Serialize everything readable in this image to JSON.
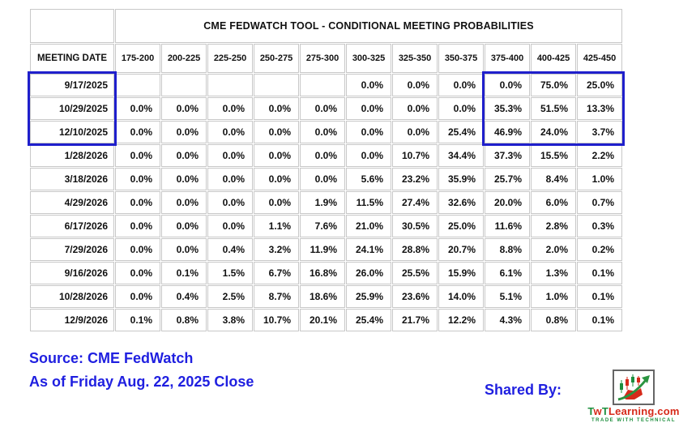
{
  "header": {
    "title": "CME FEDWATCH TOOL - CONDITIONAL MEETING PROBABILITIES",
    "date_column_label": "MEETING DATE",
    "rate_bins": [
      "175-200",
      "200-225",
      "225-250",
      "250-275",
      "275-300",
      "300-325",
      "325-350",
      "350-375",
      "375-400",
      "400-425",
      "425-450"
    ]
  },
  "chart_data": {
    "type": "table",
    "title": "CME FEDWATCH TOOL - CONDITIONAL MEETING PROBABILITIES",
    "columns": [
      "MEETING DATE",
      "175-200",
      "200-225",
      "225-250",
      "250-275",
      "275-300",
      "300-325",
      "325-350",
      "350-375",
      "375-400",
      "400-425",
      "425-450"
    ],
    "rows": [
      {
        "date": "9/17/2025",
        "values": [
          "",
          "",
          "",
          "",
          "",
          "0.0%",
          "0.0%",
          "0.0%",
          "0.0%",
          "75.0%",
          "25.0%"
        ],
        "cyan_index": 9
      },
      {
        "date": "10/29/2025",
        "values": [
          "0.0%",
          "0.0%",
          "0.0%",
          "0.0%",
          "0.0%",
          "0.0%",
          "0.0%",
          "0.0%",
          "35.3%",
          "51.5%",
          "13.3%"
        ],
        "cyan_index": 9
      },
      {
        "date": "12/10/2025",
        "values": [
          "0.0%",
          "0.0%",
          "0.0%",
          "0.0%",
          "0.0%",
          "0.0%",
          "0.0%",
          "25.4%",
          "46.9%",
          "24.0%",
          "3.7%"
        ],
        "cyan_index": 8
      },
      {
        "date": "1/28/2026",
        "values": [
          "0.0%",
          "0.0%",
          "0.0%",
          "0.0%",
          "0.0%",
          "0.0%",
          "10.7%",
          "34.4%",
          "37.3%",
          "15.5%",
          "2.2%"
        ],
        "cyan_index": 8
      },
      {
        "date": "3/18/2026",
        "values": [
          "0.0%",
          "0.0%",
          "0.0%",
          "0.0%",
          "0.0%",
          "5.6%",
          "23.2%",
          "35.9%",
          "25.7%",
          "8.4%",
          "1.0%"
        ],
        "cyan_index": 7
      },
      {
        "date": "4/29/2026",
        "values": [
          "0.0%",
          "0.0%",
          "0.0%",
          "0.0%",
          "1.9%",
          "11.5%",
          "27.4%",
          "32.6%",
          "20.0%",
          "6.0%",
          "0.7%"
        ],
        "cyan_index": 7
      },
      {
        "date": "6/17/2026",
        "values": [
          "0.0%",
          "0.0%",
          "0.0%",
          "1.1%",
          "7.6%",
          "21.0%",
          "30.5%",
          "25.0%",
          "11.6%",
          "2.8%",
          "0.3%"
        ],
        "cyan_index": 6
      },
      {
        "date": "7/29/2026",
        "values": [
          "0.0%",
          "0.0%",
          "0.4%",
          "3.2%",
          "11.9%",
          "24.1%",
          "28.8%",
          "20.7%",
          "8.8%",
          "2.0%",
          "0.2%"
        ],
        "cyan_index": 6
      },
      {
        "date": "9/16/2026",
        "values": [
          "0.0%",
          "0.1%",
          "1.5%",
          "6.7%",
          "16.8%",
          "26.0%",
          "25.5%",
          "15.9%",
          "6.1%",
          "1.3%",
          "0.1%"
        ],
        "cyan_index": 5
      },
      {
        "date": "10/28/2026",
        "values": [
          "0.0%",
          "0.4%",
          "2.5%",
          "8.7%",
          "18.6%",
          "25.9%",
          "23.6%",
          "14.0%",
          "5.1%",
          "1.0%",
          "0.1%"
        ],
        "cyan_index": 5
      },
      {
        "date": "12/9/2026",
        "values": [
          "0.1%",
          "0.8%",
          "3.8%",
          "10.7%",
          "20.1%",
          "25.4%",
          "21.7%",
          "12.2%",
          "4.3%",
          "0.8%",
          "0.1%"
        ],
        "cyan_index": 5
      }
    ],
    "legend_note": "cyan = highest probability bin per meeting; yellow = bins above the highest-probability bin"
  },
  "highlight_boxes": [
    {
      "name": "near-meetings-box",
      "row_start": 0,
      "row_end": 2,
      "col_start": 0,
      "col_end": 0
    },
    {
      "name": "top-right-bins-box",
      "row_start": 0,
      "row_end": 2,
      "col_start": 9,
      "col_end": 11
    }
  ],
  "colors": {
    "cyan_highlight": "#c9ecf6",
    "yellow_highlight": "#f9f9da",
    "box_border_blue": "#1f1fcc",
    "footer_text_blue": "#1f1fe0",
    "brand_green": "#1e8f3e",
    "brand_red": "#d62a1a"
  },
  "footer": {
    "source": "Source: CME FedWatch",
    "as_of": "As of Friday Aug. 22, 2025 Close",
    "shared_by": "Shared By:",
    "logo": {
      "brand_t1": "T",
      "brand_w": "w",
      "brand_t2": "T",
      "brand_rest": "Learning.com",
      "tagline": "TRADE WITH TECHNICAL"
    }
  }
}
